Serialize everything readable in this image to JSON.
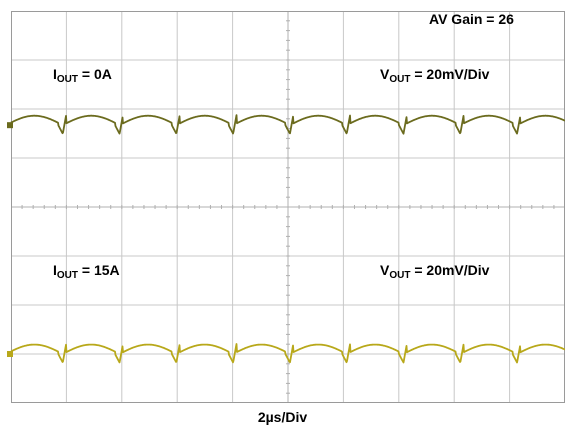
{
  "chart_data": {
    "type": "line",
    "title": "",
    "xlabel": "2µs/Div",
    "gain_label": "AV Gain = 26",
    "grid": true,
    "divisions": {
      "horizontal": 10,
      "vertical": 8
    },
    "colors": {
      "trace_top": "#6b6b1e",
      "trace_bottom": "#b8a81a",
      "grid": "#c8c8c8",
      "border": "#9a9a9a"
    },
    "traces": [
      {
        "current_label": {
          "sym": "I",
          "sub": "OUT",
          "val": " = 0A"
        },
        "voltage_label": {
          "sym": "V",
          "sub": "OUT",
          "val": " = 20mV/Div"
        },
        "volts_per_div_mV": 20,
        "ripple_period_us": 2.05,
        "ripple_pp_div": 0.35
      },
      {
        "current_label": {
          "sym": "I",
          "sub": "OUT",
          "val": " = 15A"
        },
        "voltage_label": {
          "sym": "V",
          "sub": "OUT",
          "val": " = 20mV/Div"
        },
        "volts_per_div_mV": 20,
        "ripple_period_us": 2.05,
        "ripple_pp_div": 0.35
      }
    ]
  }
}
